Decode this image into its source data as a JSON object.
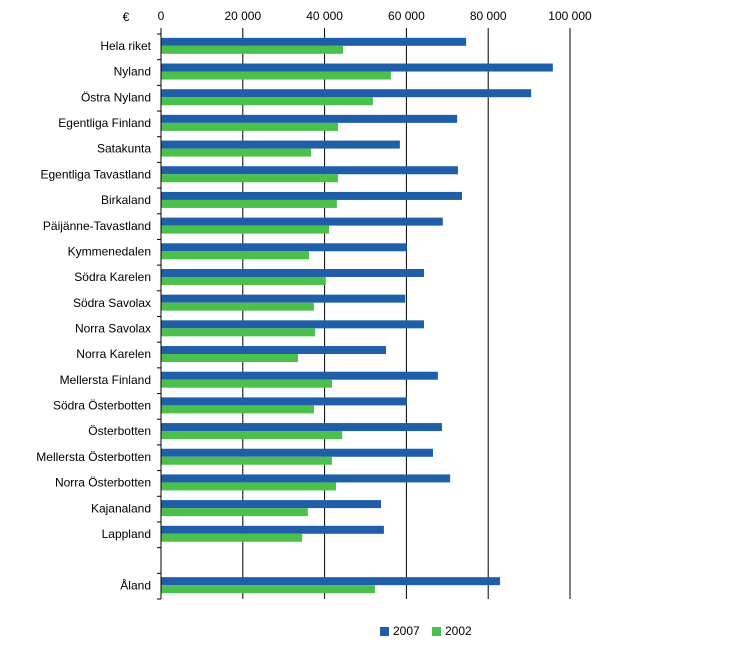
{
  "chart_data": {
    "type": "hbar",
    "unit_label": "€",
    "categories": [
      "Hela riket",
      "Nyland",
      "Östra Nyland",
      "Egentliga Finland",
      "Satakunta",
      "Egentliga Tavastland",
      "Birkaland",
      "Päijänne-Tavastland",
      "Kymmenedalen",
      "Södra Karelen",
      "Södra Savolax",
      "Norra Savolax",
      "Norra Karelen",
      "Mellersta Finland",
      "Södra Österbotten",
      "Österbotten",
      "Mellersta Österbotten",
      "Norra Österbotten",
      "Kajanaland",
      "Lappland",
      null,
      "Åland"
    ],
    "series": [
      {
        "name": "2007",
        "color": "#1f5fa8",
        "values": [
          74600,
          95800,
          90500,
          72400,
          58400,
          72600,
          73600,
          68900,
          60100,
          64300,
          59700,
          64300,
          55000,
          67700,
          60100,
          68700,
          66500,
          70700,
          53800,
          54500,
          null,
          82900
        ]
      },
      {
        "name": "2002",
        "color": "#4cc04c",
        "values": [
          44500,
          56200,
          51800,
          43300,
          36700,
          43300,
          43000,
          41100,
          36200,
          40300,
          37400,
          37700,
          33500,
          41800,
          37400,
          44300,
          41800,
          42800,
          35900,
          34500,
          null,
          52300
        ]
      }
    ],
    "xlim": [
      0,
      100000
    ],
    "xticks": [
      0,
      {
        "value": 20000,
        "label": "20 000"
      },
      {
        "value": 40000,
        "label": "40 000"
      },
      {
        "value": 60000,
        "label": "60 000"
      },
      {
        "value": 80000,
        "label": "80 000"
      },
      {
        "value": 100000,
        "label": "100 000"
      }
    ],
    "grid": true,
    "legend": "bottom"
  }
}
